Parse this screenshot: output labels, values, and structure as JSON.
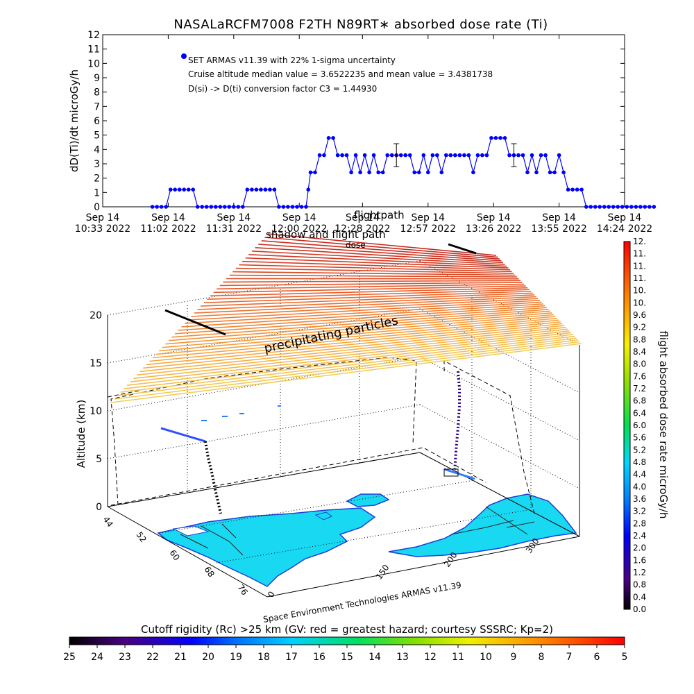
{
  "chart_data": [
    {
      "type": "scatter",
      "title": "NASALaRCFM7008   F2TH  N89RT∗ absorbed dose rate (Ti)",
      "ylabel": "dD(Ti)/dt microGy/h",
      "ylim": [
        0,
        12
      ],
      "yticks": [
        "0",
        "1",
        "2",
        "3",
        "4",
        "5",
        "6",
        "7",
        "8",
        "9",
        "10",
        "11",
        "12"
      ],
      "xticks": [
        {
          "date": "Sep 14",
          "time": "10:33 2022"
        },
        {
          "date": "Sep 14",
          "time": "11:02 2022"
        },
        {
          "date": "Sep 14",
          "time": "11:31 2022"
        },
        {
          "date": "Sep 14",
          "time": "12:00 2022"
        },
        {
          "date": "Sep 14",
          "time": "12:28 2022"
        },
        {
          "date": "Sep 14",
          "time": "12:57 2022"
        },
        {
          "date": "Sep 14",
          "time": "13:26 2022"
        },
        {
          "date": "Sep 14",
          "time": "13:55 2022"
        },
        {
          "date": "Sep 14",
          "time": "14:24 2022"
        }
      ],
      "legend": {
        "label": "SET ARMAS v11.39 with 22% 1-sigma uncertainty",
        "line2": "Cruise altitude median value = 3.6522235 and mean value = 3.4381738",
        "line3": "D(si) -> D(ti) conversion factor C3 = 1.44930"
      },
      "color": "#0000ff",
      "points": [
        [
          "10:55",
          0
        ],
        [
          "10:57",
          0
        ],
        [
          "10:59",
          0
        ],
        [
          "11:01",
          0
        ],
        [
          "11:03",
          1.2
        ],
        [
          "11:05",
          1.2
        ],
        [
          "11:07",
          1.2
        ],
        [
          "11:09",
          1.2
        ],
        [
          "11:11",
          1.2
        ],
        [
          "11:13",
          1.2
        ],
        [
          "11:15",
          0
        ],
        [
          "11:17",
          0
        ],
        [
          "11:19",
          0
        ],
        [
          "11:21",
          0
        ],
        [
          "11:23",
          0
        ],
        [
          "11:25",
          0
        ],
        [
          "11:27",
          0
        ],
        [
          "11:29",
          0
        ],
        [
          "11:31",
          0
        ],
        [
          "11:33",
          0
        ],
        [
          "11:35",
          0
        ],
        [
          "11:37",
          1.2
        ],
        [
          "11:39",
          1.2
        ],
        [
          "11:41",
          1.2
        ],
        [
          "11:43",
          1.2
        ],
        [
          "11:45",
          1.2
        ],
        [
          "11:47",
          1.2
        ],
        [
          "11:49",
          1.2
        ],
        [
          "11:51",
          0
        ],
        [
          "11:53",
          0
        ],
        [
          "11:55",
          0
        ],
        [
          "11:57",
          0
        ],
        [
          "11:59",
          0
        ],
        [
          "12:01",
          0
        ],
        [
          "12:03",
          0
        ],
        [
          "12:04",
          1.2
        ],
        [
          "12:05",
          2.4
        ],
        [
          "12:07",
          2.4
        ],
        [
          "12:09",
          3.6
        ],
        [
          "12:11",
          3.6
        ],
        [
          "12:13",
          4.8
        ],
        [
          "12:15",
          4.8
        ],
        [
          "12:17",
          3.6
        ],
        [
          "12:19",
          3.6
        ],
        [
          "12:21",
          3.6
        ],
        [
          "12:23",
          2.4
        ],
        [
          "12:25",
          3.6
        ],
        [
          "12:27",
          2.4
        ],
        [
          "12:29",
          3.6
        ],
        [
          "12:31",
          2.4
        ],
        [
          "12:33",
          3.6
        ],
        [
          "12:35",
          2.4
        ],
        [
          "12:37",
          2.4
        ],
        [
          "12:39",
          3.6
        ],
        [
          "12:41",
          3.6
        ],
        [
          "12:43",
          3.6
        ],
        [
          "12:45",
          3.6
        ],
        [
          "12:47",
          3.6
        ],
        [
          "12:49",
          3.6
        ],
        [
          "12:51",
          2.4
        ],
        [
          "12:53",
          2.4
        ],
        [
          "12:55",
          3.6
        ],
        [
          "12:57",
          2.4
        ],
        [
          "12:59",
          3.6
        ],
        [
          "13:01",
          3.6
        ],
        [
          "13:03",
          2.4
        ],
        [
          "13:05",
          3.6
        ],
        [
          "13:07",
          3.6
        ],
        [
          "13:09",
          3.6
        ],
        [
          "13:11",
          3.6
        ],
        [
          "13:13",
          3.6
        ],
        [
          "13:15",
          3.6
        ],
        [
          "13:17",
          2.4
        ],
        [
          "13:19",
          3.6
        ],
        [
          "13:21",
          3.6
        ],
        [
          "13:23",
          3.6
        ],
        [
          "13:25",
          4.8
        ],
        [
          "13:27",
          4.8
        ],
        [
          "13:29",
          4.8
        ],
        [
          "13:31",
          4.8
        ],
        [
          "13:33",
          3.6
        ],
        [
          "13:35",
          3.6
        ],
        [
          "13:37",
          3.6
        ],
        [
          "13:39",
          3.6
        ],
        [
          "13:41",
          2.4
        ],
        [
          "13:43",
          3.6
        ],
        [
          "13:45",
          2.4
        ],
        [
          "13:47",
          3.6
        ],
        [
          "13:49",
          3.6
        ],
        [
          "13:51",
          2.4
        ],
        [
          "13:53",
          2.4
        ],
        [
          "13:55",
          3.6
        ],
        [
          "13:57",
          2.4
        ],
        [
          "13:59",
          1.2
        ],
        [
          "14:01",
          1.2
        ],
        [
          "14:03",
          1.2
        ],
        [
          "14:05",
          1.2
        ],
        [
          "14:07",
          0
        ],
        [
          "14:09",
          0
        ],
        [
          "14:11",
          0
        ],
        [
          "14:13",
          0
        ],
        [
          "14:15",
          0
        ],
        [
          "14:17",
          0
        ],
        [
          "14:19",
          0
        ],
        [
          "14:21",
          0
        ],
        [
          "14:23",
          0
        ],
        [
          "14:25",
          0
        ],
        [
          "14:27",
          0
        ],
        [
          "14:29",
          0
        ],
        [
          "14:31",
          0
        ],
        [
          "14:33",
          0
        ],
        [
          "14:35",
          0
        ],
        [
          "14:37",
          0
        ]
      ],
      "error_bars": [
        {
          "time": "12:43",
          "value": 3.6,
          "low": 2.8,
          "high": 4.4
        },
        {
          "time": "13:35",
          "value": 3.6,
          "low": 2.8,
          "high": 4.4
        }
      ]
    },
    {
      "type": "3d-trajectory",
      "zlabel": "Altitude (km)",
      "zticks": [
        "0",
        "5",
        "10",
        "15",
        "20"
      ],
      "xaxis_ticks": [
        "0",
        "150",
        "200",
        "300"
      ],
      "yaxis_ticks": [
        "44",
        "52",
        "60",
        "68",
        "76"
      ],
      "annotation": "precipitating particles",
      "labels_top": {
        "line1": "flightpath",
        "line2": "shadow and flight path",
        "line3": "dose"
      },
      "credit": "Space Environment Technologies ARMAS v11.39",
      "colorbar": {
        "label": "flight absorbed dose rate microGy/h",
        "ticks": [
          "0.0",
          "0.4",
          "0.8",
          "1.2",
          "1.6",
          "2.0",
          "2.4",
          "2.8",
          "3.2",
          "3.6",
          "4.0",
          "4.4",
          "4.8",
          "5.2",
          "5.6",
          "6.0",
          "6.4",
          "6.8",
          "7.2",
          "7.6",
          "8.0",
          "8.4",
          "8.8",
          "9.2",
          "9.6",
          "10.",
          "10.",
          "11.",
          "11.",
          "11.",
          "12."
        ]
      }
    },
    {
      "type": "colorbar",
      "title": "Cutoff rigidity (Rc) >25 km (GV: red = greatest hazard; courtesy SSSRC; Kp=2)",
      "ticks": [
        "25",
        "24",
        "23",
        "22",
        "21",
        "20",
        "19",
        "18",
        "17",
        "16",
        "15",
        "14",
        "13",
        "12",
        "11",
        "10",
        "9",
        "8",
        "7",
        "6",
        "5"
      ]
    }
  ]
}
